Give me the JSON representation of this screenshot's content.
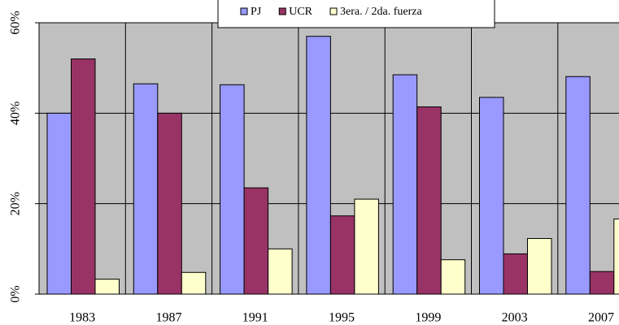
{
  "chart_data": {
    "type": "bar",
    "categories": [
      "1983",
      "1987",
      "1991",
      "1995",
      "1999",
      "2003",
      "2007"
    ],
    "series": [
      {
        "name": "PJ",
        "color": "#9999ff",
        "values": [
          40,
          46.5,
          46.3,
          57,
          48.5,
          43.5,
          48.1
        ]
      },
      {
        "name": "UCR",
        "color": "#993366",
        "values": [
          52,
          40,
          23.5,
          17.3,
          41.4,
          8.9,
          5
        ]
      },
      {
        "name": "3era. / 2da. fuerza",
        "color": "#ffffcc",
        "values": [
          3.3,
          4.8,
          10,
          21,
          7.6,
          12.3,
          16.6
        ]
      }
    ],
    "ylim": [
      0,
      60
    ],
    "yticks": [
      {
        "value": 0,
        "label": "0%"
      },
      {
        "value": 20,
        "label": "20%"
      },
      {
        "value": 40,
        "label": "40%"
      },
      {
        "value": 60,
        "label": "60%"
      }
    ],
    "grid": true
  }
}
